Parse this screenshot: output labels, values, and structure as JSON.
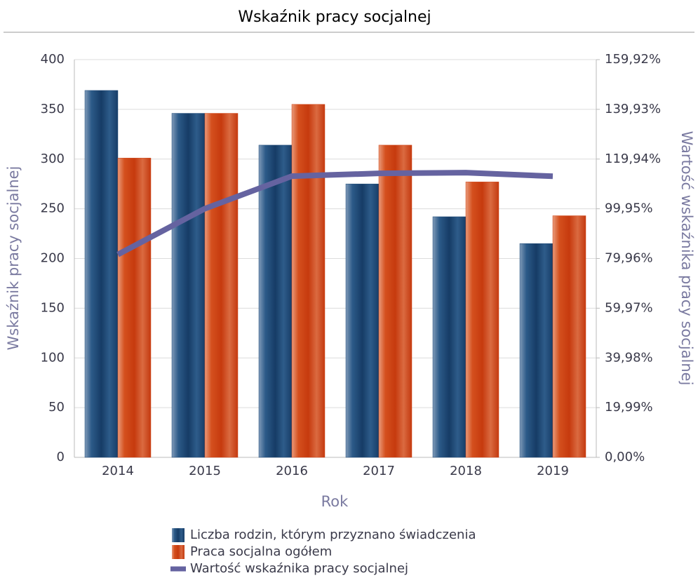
{
  "chart_data": {
    "type": "bar",
    "title": "Wskaźnik pracy socjalnej",
    "x_label": "Rok",
    "y_label": "Wskaźnik pracy socjalnej",
    "y2_label": "Wartość wskaźnika pracy socjalnej",
    "categories": [
      "2014",
      "2015",
      "2016",
      "2017",
      "2018",
      "2019"
    ],
    "series": [
      {
        "name": "Liczba rodzin, którym przyznano świadczenia",
        "type": "bar",
        "color": "#1f4a78",
        "values": [
          369,
          346,
          314,
          275,
          242,
          215
        ]
      },
      {
        "name": "Praca socjalna ogółem",
        "type": "bar",
        "color": "#cf4214",
        "values": [
          301,
          346,
          355,
          314,
          277,
          243
        ]
      },
      {
        "name": "Wartość wskaźnika pracy socjalnej",
        "type": "line",
        "axis": "y2",
        "color": "#6563a0",
        "values": [
          81.57,
          100,
          113.06,
          114.18,
          114.46,
          113.02
        ]
      }
    ],
    "ylim": [
      0,
      400
    ],
    "yticks": [
      0,
      50,
      100,
      150,
      200,
      250,
      300,
      350,
      400
    ],
    "y2lim": [
      0,
      159.92
    ],
    "y2ticks": [
      {
        "value": 0,
        "label": "0,00%"
      },
      {
        "value": 19.99,
        "label": "19,99%"
      },
      {
        "value": 39.98,
        "label": "39,98%"
      },
      {
        "value": 59.97,
        "label": "59,97%"
      },
      {
        "value": 79.96,
        "label": "79,96%"
      },
      {
        "value": 99.95,
        "label": "99,95%"
      },
      {
        "value": 119.94,
        "label": "119,94%"
      },
      {
        "value": 139.93,
        "label": "139,93%"
      },
      {
        "value": 159.92,
        "label": "159,92%"
      }
    ],
    "grid": true
  }
}
